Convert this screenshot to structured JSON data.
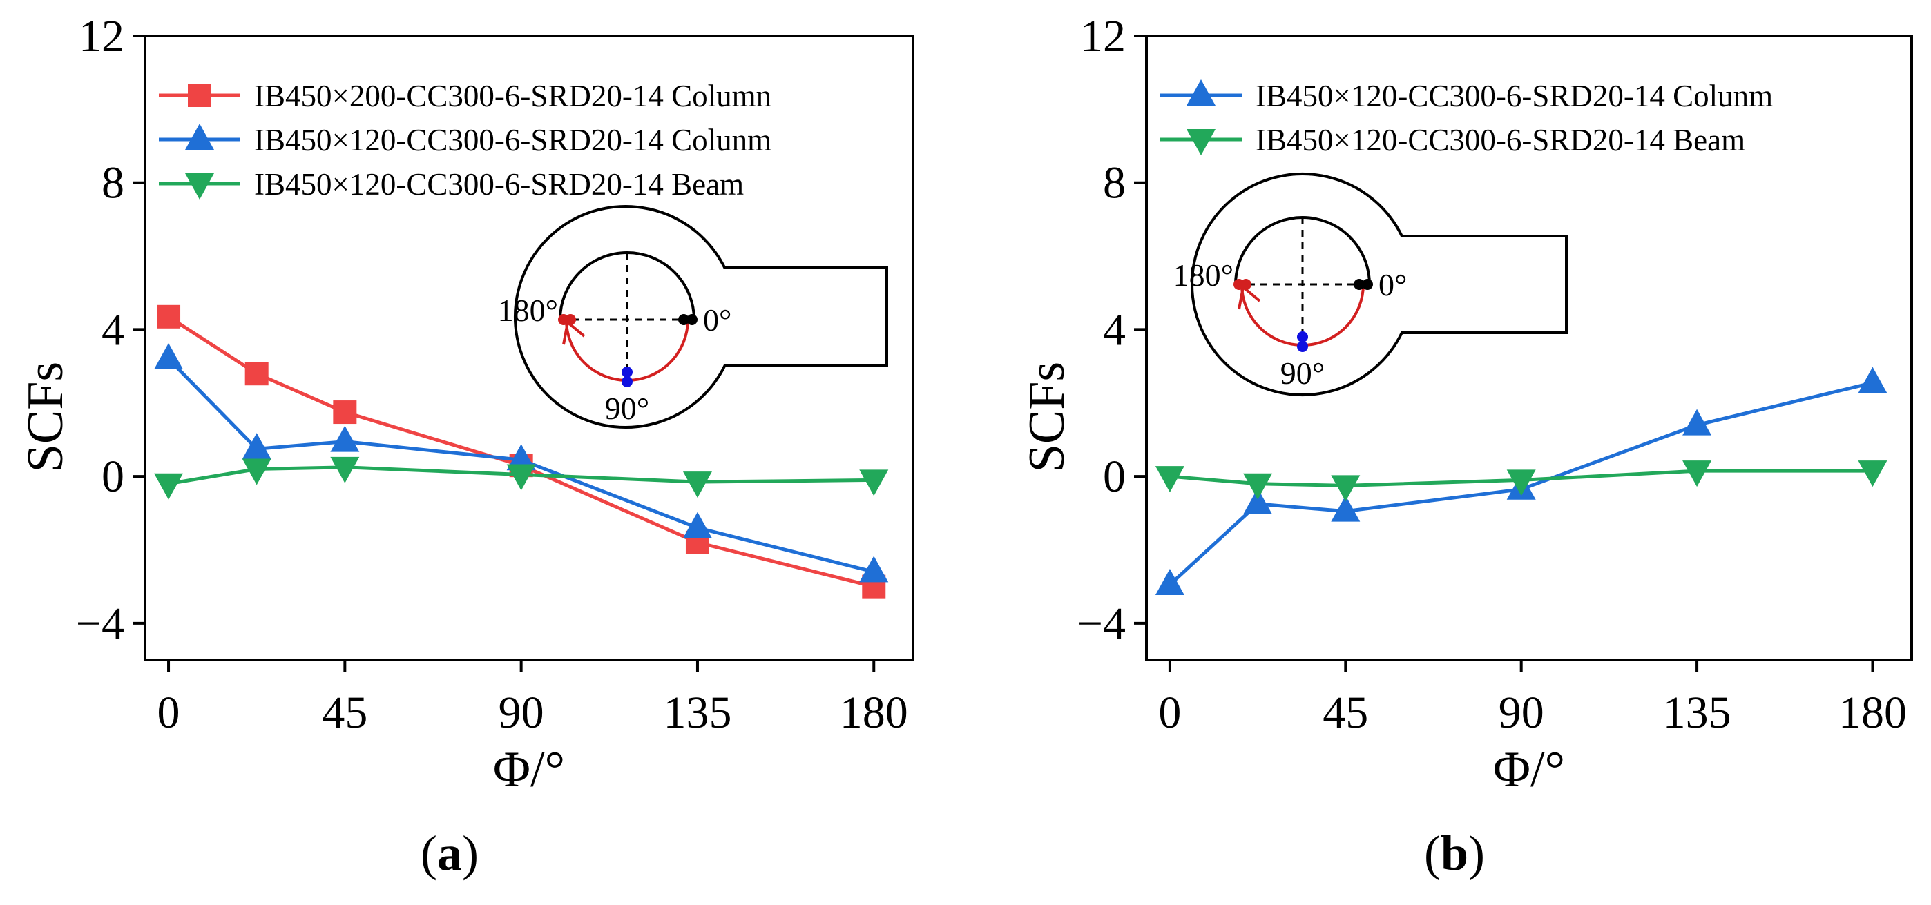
{
  "colors": {
    "red": "#ef4444",
    "blue": "#1f6fd6",
    "green": "#22a85a",
    "inset_red": "#d32020",
    "inset_blue": "#1010e0"
  },
  "chart_data": [
    {
      "type": "line",
      "caption_letter": "a",
      "xlabel": "Φ/°",
      "ylabel": "SCFs",
      "xlim": [
        -6,
        190
      ],
      "ylim": [
        -5,
        12
      ],
      "xticks": [
        "0",
        "45",
        "90",
        "135",
        "180"
      ],
      "yticks": [
        "−4",
        "0",
        "4",
        "8",
        "12"
      ],
      "grid": false,
      "legend_position": "top-left",
      "series": [
        {
          "name": "IB450×200-CC300-6-SRD20-14 Column",
          "color": "red",
          "marker": "square",
          "x": [
            0,
            22.5,
            45,
            90,
            135,
            180
          ],
          "y": [
            4.35,
            2.8,
            1.75,
            0.3,
            -1.8,
            -3.0
          ]
        },
        {
          "name": "IB450×120-CC300-6-SRD20-14 Colunm",
          "color": "blue",
          "marker": "triangle-up",
          "x": [
            0,
            22.5,
            45,
            90,
            135,
            180
          ],
          "y": [
            3.2,
            0.75,
            0.95,
            0.45,
            -1.4,
            -2.6
          ]
        },
        {
          "name": "IB450×120-CC300-6-SRD20-14 Beam",
          "color": "green",
          "marker": "triangle-down",
          "x": [
            0,
            22.5,
            45,
            90,
            135,
            180
          ],
          "y": [
            -0.2,
            0.2,
            0.25,
            0.05,
            -0.15,
            -0.1
          ]
        }
      ],
      "inset": {
        "angle_labels": [
          "180°",
          "0°",
          "90°"
        ]
      }
    },
    {
      "type": "line",
      "caption_letter": "b",
      "xlabel": "Φ/°",
      "ylabel": "SCFs",
      "xlim": [
        -6,
        190
      ],
      "ylim": [
        -5,
        12
      ],
      "xticks": [
        "0",
        "45",
        "90",
        "135",
        "180"
      ],
      "yticks": [
        "−4",
        "0",
        "4",
        "8",
        "12"
      ],
      "grid": false,
      "legend_position": "top-left",
      "series": [
        {
          "name": "IB450×120-CC300-6-SRD20-14 Colunm",
          "color": "blue",
          "marker": "triangle-up",
          "x": [
            0,
            22.5,
            45,
            90,
            135,
            180
          ],
          "y": [
            -2.95,
            -0.75,
            -0.95,
            -0.35,
            1.4,
            2.55
          ]
        },
        {
          "name": "IB450×120-CC300-6-SRD20-14 Beam",
          "color": "green",
          "marker": "triangle-down",
          "x": [
            0,
            22.5,
            45,
            90,
            135,
            180
          ],
          "y": [
            0.0,
            -0.2,
            -0.25,
            -0.1,
            0.15,
            0.15
          ]
        }
      ],
      "inset": {
        "angle_labels": [
          "180°",
          "0°",
          "90°"
        ]
      }
    }
  ]
}
